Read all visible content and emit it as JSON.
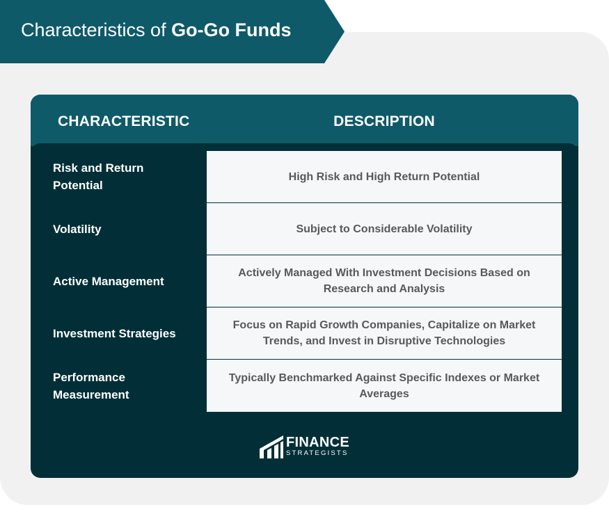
{
  "title": {
    "prefix": "Characteristics of ",
    "emphasis": "Go-Go Funds"
  },
  "table": {
    "headers": {
      "characteristic": "CHARACTERISTIC",
      "description": "DESCRIPTION"
    },
    "rows": [
      {
        "characteristic": "Risk and Return Potential",
        "description": "High Risk and High Return Potential"
      },
      {
        "characteristic": "Volatility",
        "description": "Subject to Considerable Volatility"
      },
      {
        "characteristic": "Active Management",
        "description": "Actively Managed With Investment Decisions Based on Research and Analysis"
      },
      {
        "characteristic": "Investment Strategies",
        "description": "Focus on Rapid Growth Companies, Capitalize on Market Trends, and Invest in Disruptive Technologies"
      },
      {
        "characteristic": "Performance Measurement",
        "description": "Typically Benchmarked Against Specific Indexes or Market Averages"
      }
    ]
  },
  "logo": {
    "name": "FINANCE",
    "tagline": "STRATEGISTS",
    "icon": "finance-strategists-logo-icon"
  },
  "colors": {
    "banner": "#0e5a69",
    "card_dark": "#022f37",
    "panel_bg": "#f1f1f1",
    "cell_bg": "#f5f7f9",
    "cell_text": "#595959"
  }
}
